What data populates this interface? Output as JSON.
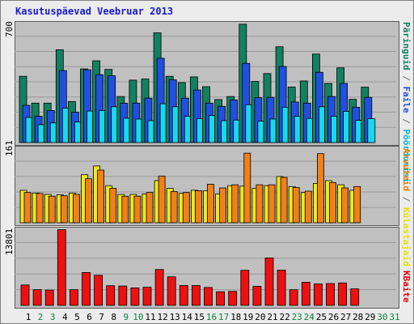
{
  "title": "Kasutuspäevad Veebruar 2013",
  "scales": {
    "top": "700",
    "middle": "161",
    "bottom": "13801"
  },
  "right_labels": {
    "top": [
      {
        "text": "Päringuid",
        "color": "#128060"
      },
      {
        "text": " / ",
        "color": "#707070"
      },
      {
        "text": "Faile",
        "color": "#2050d8"
      },
      {
        "text": " / ",
        "color": "#707070"
      },
      {
        "text": "Pöördumisi",
        "color": "#00b8d8"
      }
    ],
    "middle": [
      {
        "text": "Arvuteid",
        "color": "#f08000"
      },
      {
        "text": " / ",
        "color": "#707070"
      },
      {
        "text": "Külastajaid",
        "color": "#e8e000"
      }
    ],
    "bottom": [
      {
        "text": "KBaite",
        "color": "#e00000"
      }
    ]
  },
  "colors": {
    "hits": "#138060",
    "files": "#2050e0",
    "pages": "#18d8f0",
    "visits": "#f0e818",
    "sites": "#f08018",
    "kbytes": "#ee1010",
    "weekday_label": "#000000",
    "weekend_label": "#108040"
  },
  "chart_data": {
    "type": "bar",
    "categories": [
      "1",
      "2",
      "3",
      "4",
      "5",
      "6",
      "7",
      "8",
      "9",
      "10",
      "11",
      "12",
      "13",
      "14",
      "15",
      "16",
      "17",
      "18",
      "19",
      "20",
      "21",
      "22",
      "23",
      "24",
      "25",
      "26",
      "27",
      "28",
      "29",
      "30",
      "31"
    ],
    "weekend_days": [
      "2",
      "3",
      "9",
      "10",
      "16",
      "17",
      "23",
      "24",
      "30",
      "31"
    ],
    "panels": [
      {
        "name": "hits_files_pages",
        "ylim": [
          0,
          700
        ],
        "series": [
          {
            "name": "Päringuid",
            "values": [
              403,
              240,
              240,
              565,
              250,
              448,
              498,
              445,
              280,
              380,
              387,
              668,
              403,
              365,
              400,
              340,
              262,
              280,
              720,
              372,
              420,
              583,
              338,
              375,
              539,
              360,
              455,
              263,
              337,
              0,
              0
            ]
          },
          {
            "name": "Faile",
            "values": [
              227,
              160,
              195,
              438,
              185,
              443,
              413,
              406,
              240,
              240,
              270,
              513,
              382,
              270,
              320,
              240,
              221,
              260,
              482,
              273,
              275,
              463,
              247,
              240,
              428,
              280,
              360,
              215,
              275,
              0,
              0
            ]
          },
          {
            "name": "Pöördumisi",
            "values": [
              153,
              109,
              120,
              210,
              125,
              192,
              195,
              218,
              148,
              143,
              133,
              236,
              218,
              160,
              145,
              165,
              133,
              137,
              230,
              130,
              143,
              215,
              160,
              147,
              218,
              160,
              190,
              135,
              145,
              0,
              0
            ]
          }
        ]
      },
      {
        "name": "sites_visits",
        "ylim": [
          0,
          161
        ],
        "series": [
          {
            "name": "Külastajaid",
            "values": [
              71,
              65,
              62,
              61,
              65,
              105,
              124,
              81,
              62,
              62,
              63,
              92,
              75,
              64,
              71,
              70,
              63,
              81,
              80,
              75,
              81,
              101,
              79,
              66,
              86,
              92,
              83,
              71,
              0,
              0,
              0
            ]
          },
          {
            "name": "Arvuteid",
            "values": [
              66,
              64,
              58,
              59,
              62,
              96,
              115,
              75,
              58,
              58,
              66,
              102,
              68,
              66,
              70,
              84,
              76,
              83,
              152,
              83,
              83,
              99,
              77,
              69,
              151,
              88,
              76,
              79,
              0,
              0,
              0
            ]
          }
        ]
      },
      {
        "name": "kbytes",
        "ylim": [
          0,
          13801
        ],
        "series": [
          {
            "name": "KBaite",
            "values": [
              3740,
              2880,
              2800,
              13870,
              2860,
              6020,
              5500,
              3600,
              3540,
              3200,
              3330,
              6580,
              5240,
              3650,
              3640,
              3280,
              2500,
              2560,
              6420,
              3500,
              8690,
              6450,
              2860,
              4250,
              3920,
              4010,
              4110,
              3030,
              0,
              0,
              0
            ]
          }
        ]
      }
    ]
  }
}
